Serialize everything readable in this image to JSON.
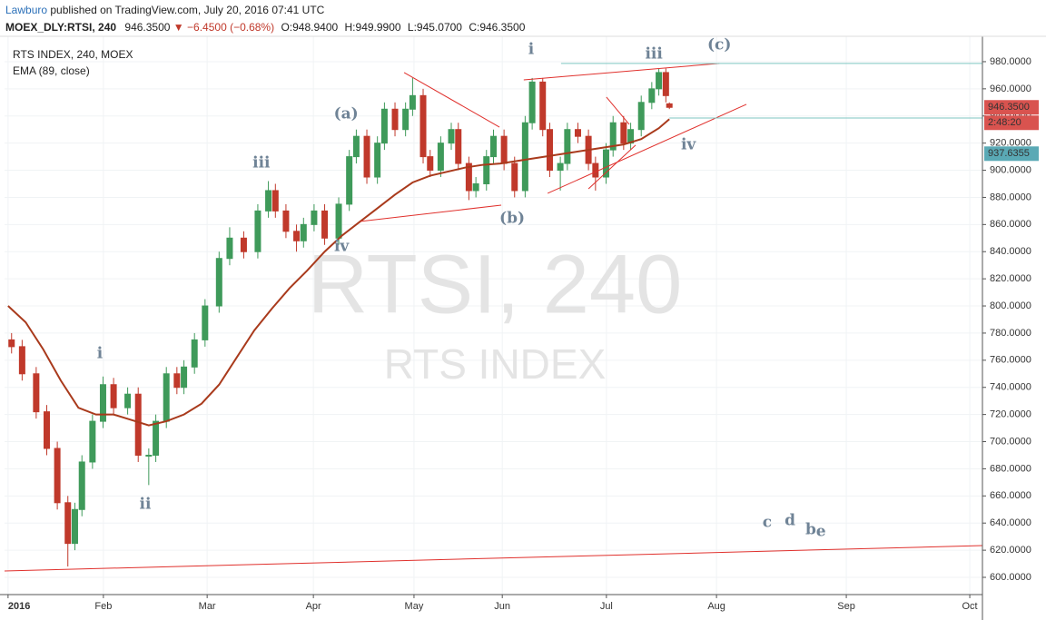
{
  "header": {
    "publisher": "Lawburo",
    "published": "published on TradingView.com, July 20, 2016 07:41 UTC",
    "symbol": "MOEX_DLY:RTSI, 240",
    "last": "946.3500",
    "arrow": "▼",
    "change": "−6.4500 (−0.68%)",
    "open": "O:948.9400",
    "high": "H:949.9900",
    "low": "L:945.0700",
    "close": "C:946.3500"
  },
  "chart_data": {
    "type": "candlestick",
    "title": "RTS INDEX, 240, MOEX",
    "watermark": {
      "title": "RTSI, 240",
      "subtitle": "RTS INDEX"
    },
    "up_color": "#3f9a5a",
    "down_color": "#c0392b",
    "x": [
      1,
      4,
      8,
      11,
      14,
      17,
      19,
      21,
      24,
      27,
      30,
      34,
      37,
      40,
      42,
      45,
      48,
      50,
      53,
      56,
      60,
      63,
      67,
      71,
      74,
      76,
      79,
      82,
      84,
      87,
      90,
      94,
      97,
      99,
      102,
      105,
      107,
      110,
      113,
      115,
      118,
      120,
      123,
      126,
      128,
      131,
      133,
      136,
      138,
      141,
      144,
      147,
      149,
      152,
      154,
      157,
      159,
      162,
      165,
      167,
      170,
      172,
      175,
      177,
      180,
      183,
      185,
      187,
      188
    ],
    "open": [
      775,
      770,
      750,
      722,
      695,
      655,
      625,
      650,
      685,
      715,
      742,
      725,
      735,
      690,
      690,
      715,
      750,
      740,
      755,
      775,
      800,
      835,
      850,
      840,
      870,
      885,
      870,
      855,
      848,
      860,
      870,
      850,
      875,
      910,
      925,
      895,
      920,
      945,
      930,
      945,
      955,
      910,
      900,
      920,
      930,
      905,
      885,
      890,
      910,
      925,
      905,
      885,
      935,
      965,
      930,
      900,
      905,
      930,
      925,
      905,
      895,
      915,
      935,
      920,
      930,
      950,
      960,
      972,
      948.94
    ],
    "high": [
      780,
      775,
      755,
      727,
      700,
      660,
      655,
      690,
      720,
      748,
      747,
      740,
      740,
      695,
      720,
      755,
      755,
      760,
      780,
      805,
      840,
      858,
      855,
      875,
      892,
      890,
      875,
      860,
      865,
      875,
      875,
      880,
      915,
      930,
      930,
      925,
      950,
      950,
      950,
      968,
      960,
      915,
      925,
      935,
      935,
      910,
      895,
      915,
      930,
      930,
      910,
      940,
      968,
      968,
      935,
      910,
      935,
      935,
      930,
      910,
      920,
      940,
      940,
      935,
      955,
      965,
      975,
      975,
      949.99
    ],
    "low": [
      765,
      745,
      717,
      690,
      650,
      608,
      620,
      645,
      680,
      710,
      720,
      720,
      685,
      668,
      685,
      710,
      735,
      735,
      750,
      770,
      795,
      830,
      835,
      835,
      865,
      865,
      850,
      840,
      843,
      855,
      845,
      845,
      870,
      905,
      890,
      890,
      915,
      925,
      925,
      940,
      905,
      895,
      895,
      915,
      900,
      878,
      880,
      885,
      905,
      900,
      880,
      880,
      930,
      925,
      895,
      885,
      900,
      920,
      900,
      885,
      890,
      910,
      915,
      915,
      925,
      945,
      955,
      950,
      945.07
    ],
    "close": [
      770,
      750,
      722,
      695,
      655,
      625,
      650,
      685,
      715,
      742,
      725,
      735,
      690,
      690,
      715,
      750,
      740,
      755,
      775,
      800,
      835,
      850,
      840,
      870,
      885,
      870,
      855,
      848,
      860,
      870,
      850,
      875,
      910,
      925,
      895,
      920,
      945,
      930,
      945,
      955,
      910,
      900,
      920,
      930,
      905,
      885,
      890,
      910,
      925,
      905,
      885,
      935,
      965,
      930,
      900,
      905,
      930,
      925,
      905,
      895,
      915,
      935,
      920,
      930,
      950,
      960,
      972,
      955,
      946.35
    ],
    "ema": {
      "name": "EMA (89, close)",
      "color": "#a93a1c",
      "x": [
        0,
        5,
        10,
        15,
        20,
        25,
        30,
        35,
        40,
        45,
        50,
        55,
        60,
        65,
        70,
        75,
        80,
        85,
        90,
        95,
        100,
        105,
        110,
        115,
        120,
        125,
        130,
        135,
        140,
        145,
        150,
        155,
        160,
        165,
        170,
        175,
        180,
        185,
        188
      ],
      "values": [
        800,
        788,
        768,
        745,
        725,
        720,
        720,
        716,
        712,
        715,
        720,
        728,
        742,
        762,
        782,
        798,
        813,
        826,
        840,
        852,
        862,
        872,
        882,
        891,
        896,
        899,
        902,
        904,
        905,
        907,
        909,
        911,
        913,
        915,
        917,
        919,
        923,
        931,
        937.64
      ]
    },
    "trendlines": [
      {
        "x": [
          -1,
          277
        ],
        "y": [
          604.7,
          623.4
        ],
        "color": "#e0302c"
      },
      {
        "x": [
          112.6,
          139.7
        ],
        "y": [
          972,
          931.8
        ],
        "color": "#e0302c"
      },
      {
        "x": [
          100.2,
          140.2
        ],
        "y": [
          862.3,
          874.3
        ],
        "color": "#e0302c"
      },
      {
        "x": [
          146.6,
          202.2
        ],
        "y": [
          966.6,
          978.7
        ],
        "color": "#e0302c"
      },
      {
        "x": [
          153.4,
          209.9
        ],
        "y": [
          883,
          948.6
        ],
        "color": "#e0302c"
      },
      {
        "x": [
          170.1,
          176.6
        ],
        "y": [
          953.9,
          933.8
        ],
        "color": "#e0302c"
      },
      {
        "x": [
          165,
          178.4
        ],
        "y": [
          886.3,
          918.5
        ],
        "color": "#e0302c"
      },
      {
        "x": [
          157.2,
          277
        ],
        "y": [
          978.7,
          978.7
        ],
        "color": "#7fc6c2"
      },
      {
        "x": [
          188,
          277
        ],
        "y": [
          938.5,
          938.5
        ],
        "color": "#7fc6c2"
      }
    ],
    "annotations": [
      {
        "text": "i",
        "x": 26.1,
        "y": 764.6
      },
      {
        "text": "ii",
        "x": 39,
        "y": 653.5
      },
      {
        "text": "iii",
        "x": 72,
        "y": 905
      },
      {
        "text": "iv",
        "x": 94.8,
        "y": 843.5
      },
      {
        "text": "(a)",
        "x": 96.1,
        "y": 941.2
      },
      {
        "text": "(b)",
        "x": 143.3,
        "y": 864.3
      },
      {
        "text": "i",
        "x": 148.7,
        "y": 988.7
      },
      {
        "text": "iii",
        "x": 183.6,
        "y": 985.4
      },
      {
        "text": "(c)",
        "x": 202.2,
        "y": 992
      },
      {
        "text": "iv",
        "x": 193.4,
        "y": 918.5
      },
      {
        "text": "c",
        "x": 215.8,
        "y": 640
      },
      {
        "text": "d",
        "x": 222.3,
        "y": 641.5
      },
      {
        "text": "b",
        "x": 228.2,
        "y": 634.8
      },
      {
        "text": "e",
        "x": 231.1,
        "y": 633.5
      }
    ],
    "last_price": {
      "value": 946.35,
      "label": "946.3500",
      "color": "#d9534f"
    },
    "countdown": "2:48:20",
    "ema_price": {
      "value": 937.6355,
      "label": "937.6355",
      "color": "#5aa9b5"
    },
    "xlim": [
      -1,
      277
    ],
    "ylim": [
      587.3,
      998.7
    ],
    "xticks": [
      {
        "value": 0,
        "label": "2016"
      },
      {
        "value": 27.1,
        "label": "Feb"
      },
      {
        "value": 56.6,
        "label": "Mar"
      },
      {
        "value": 86.8,
        "label": "Apr"
      },
      {
        "value": 115.4,
        "label": "May"
      },
      {
        "value": 140.5,
        "label": "Jun"
      },
      {
        "value": 170.1,
        "label": "Jul"
      },
      {
        "value": 201.4,
        "label": "Aug"
      },
      {
        "value": 238.3,
        "label": "Sep"
      },
      {
        "value": 273.4,
        "label": "Oct"
      }
    ],
    "yticks": [
      {
        "value": 600,
        "label": "600.0000"
      },
      {
        "value": 620,
        "label": "620.0000"
      },
      {
        "value": 640,
        "label": "640.0000"
      },
      {
        "value": 660,
        "label": "660.0000"
      },
      {
        "value": 680,
        "label": "680.0000"
      },
      {
        "value": 700,
        "label": "700.0000"
      },
      {
        "value": 720,
        "label": "720.0000"
      },
      {
        "value": 740,
        "label": "740.0000"
      },
      {
        "value": 760,
        "label": "760.0000"
      },
      {
        "value": 780,
        "label": "780.0000"
      },
      {
        "value": 800,
        "label": "800.0000"
      },
      {
        "value": 820,
        "label": "820.0000"
      },
      {
        "value": 840,
        "label": "840.0000"
      },
      {
        "value": 860,
        "label": "860.0000"
      },
      {
        "value": 880,
        "label": "880.0000"
      },
      {
        "value": 900,
        "label": "900.0000"
      },
      {
        "value": 920,
        "label": "920.0000"
      },
      {
        "value": 940,
        "label": "940.0000"
      },
      {
        "value": 960,
        "label": "960.0000"
      },
      {
        "value": 980,
        "label": "980.0000"
      }
    ],
    "grid": true
  }
}
